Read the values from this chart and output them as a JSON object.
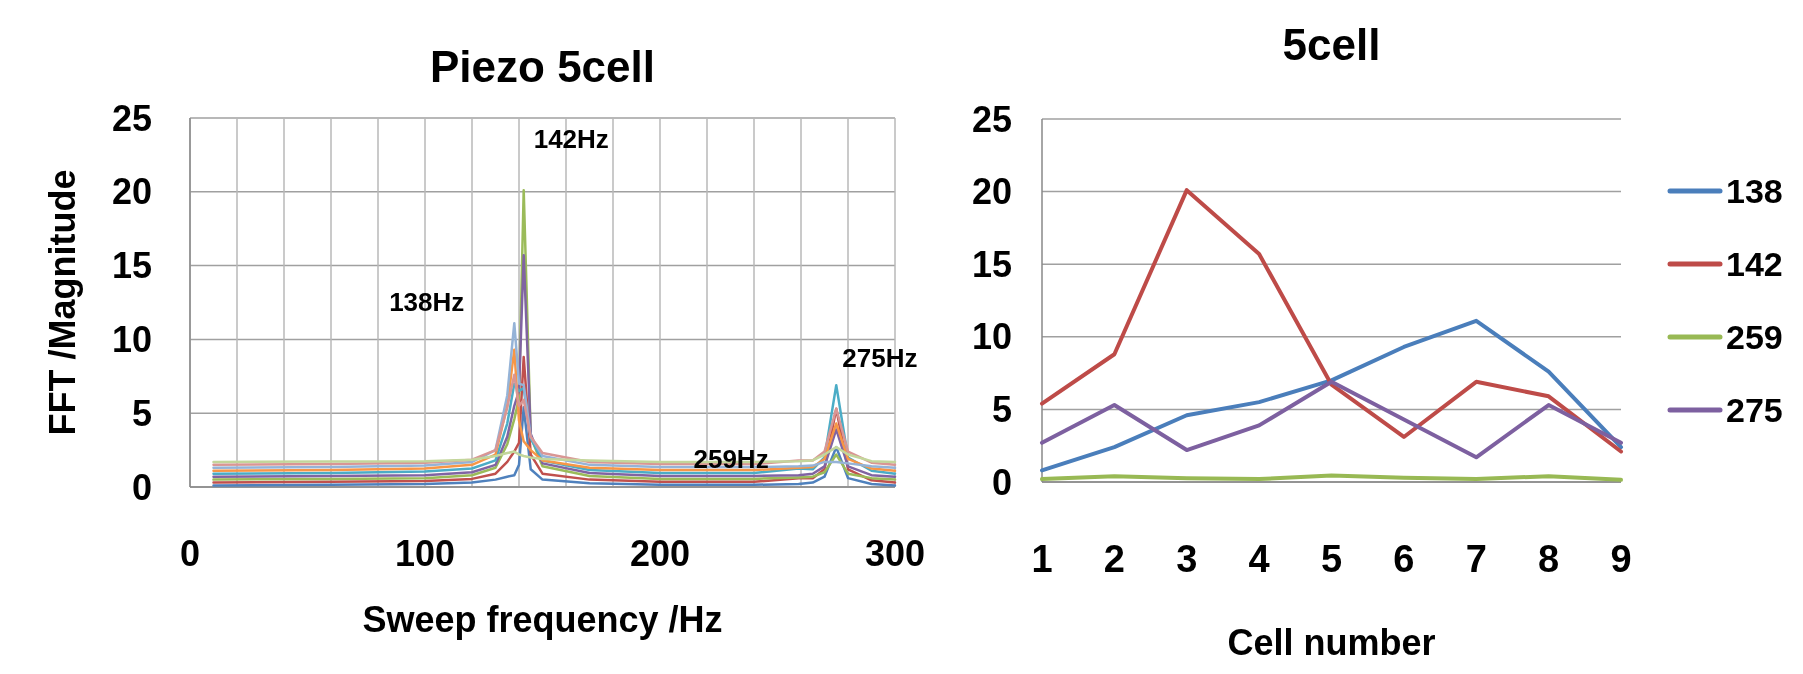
{
  "chart_data": [
    {
      "type": "line",
      "title": "Piezo 5cell",
      "xlabel": "Sweep frequency /Hz",
      "ylabel": "FFT /Magnitude",
      "xlim": [
        0,
        300
      ],
      "ylim": [
        0,
        25
      ],
      "xticks": [
        0,
        {
          "value": 20,
          "label": null
        },
        {
          "value": 40,
          "label": null
        },
        {
          "value": 60,
          "label": null
        },
        {
          "value": 80,
          "label": null
        },
        100,
        {
          "value": 120,
          "label": null
        },
        {
          "value": 140,
          "label": null
        },
        {
          "value": 160,
          "label": null
        },
        {
          "value": 180,
          "label": null
        },
        200,
        {
          "value": 220,
          "label": null
        },
        {
          "value": 240,
          "label": null
        },
        {
          "value": 260,
          "label": null
        },
        {
          "value": 280,
          "label": null
        },
        300
      ],
      "yticks": [
        0,
        5,
        10,
        15,
        20,
        25
      ],
      "grid": true,
      "x": [
        10,
        60,
        100,
        120,
        130,
        135,
        138,
        140,
        142,
        145,
        150,
        170,
        200,
        240,
        259,
        265,
        270,
        275,
        280,
        290,
        300
      ],
      "series": [
        {
          "color": "#4f81bd",
          "values": [
            0.1,
            0.15,
            0.2,
            0.3,
            0.5,
            0.7,
            0.8,
            1.5,
            5.4,
            1.2,
            0.5,
            0.25,
            0.15,
            0.15,
            0.2,
            0.3,
            0.7,
            2.7,
            0.6,
            0.2,
            0.1
          ]
        },
        {
          "color": "#c0504d",
          "values": [
            0.3,
            0.35,
            0.4,
            0.55,
            0.9,
            1.7,
            2.4,
            3,
            8.8,
            2.2,
            0.9,
            0.5,
            0.35,
            0.35,
            0.6,
            0.6,
            1.2,
            5.3,
            1.2,
            0.45,
            0.3
          ]
        },
        {
          "color": "#9bbb59",
          "values": [
            0.5,
            0.55,
            0.6,
            0.8,
            1.3,
            2.9,
            4.6,
            6,
            20.1,
            3.4,
            1.4,
            0.75,
            0.55,
            0.55,
            0.65,
            0.7,
            1,
            2.2,
            0.9,
            0.6,
            0.5
          ]
        },
        {
          "color": "#8064a2",
          "values": [
            0.7,
            0.75,
            0.8,
            1,
            1.5,
            3.4,
            5.5,
            6.5,
            15.7,
            3.6,
            1.6,
            0.95,
            0.75,
            0.75,
            0.8,
            0.9,
            1.4,
            3.9,
            1.4,
            0.8,
            0.7
          ]
        },
        {
          "color": "#4bacc6",
          "values": [
            0.9,
            0.95,
            1.05,
            1.25,
            1.8,
            4.3,
            7,
            6.5,
            6.7,
            3.3,
            1.8,
            1.15,
            0.95,
            0.95,
            1.25,
            1.2,
            2,
            6.9,
            2,
            1.1,
            0.9
          ]
        },
        {
          "color": "#f79646",
          "values": [
            1.1,
            1.15,
            1.25,
            1.5,
            2.2,
            5.5,
            9.3,
            4.5,
            3.1,
            2.5,
            1.8,
            1.3,
            1.15,
            1.15,
            1.3,
            1.35,
            1.9,
            4.3,
            1.9,
            1.25,
            1.1
          ]
        },
        {
          "color": "#95b3d7",
          "values": [
            1.3,
            1.35,
            1.45,
            1.7,
            2.5,
            6.2,
            11.1,
            7,
            6.9,
            3.4,
            2.1,
            1.5,
            1.35,
            1.35,
            1.4,
            1.45,
            1.7,
            1.7,
            1.6,
            1.4,
            1.3
          ]
        },
        {
          "color": "#d99694",
          "values": [
            1.5,
            1.55,
            1.65,
            1.85,
            2.5,
            5.4,
            7.6,
            5.5,
            5.9,
            3.4,
            2.3,
            1.7,
            1.55,
            1.55,
            1.8,
            1.8,
            2.4,
            5.3,
            2.4,
            1.65,
            1.5
          ]
        },
        {
          "color": "#c3d69b",
          "values": [
            1.7,
            1.72,
            1.75,
            1.85,
            2.1,
            2.3,
            2.4,
            2.2,
            2.1,
            2,
            1.9,
            1.8,
            1.7,
            1.7,
            1.75,
            1.8,
            2.2,
            2.7,
            2.2,
            1.75,
            1.7
          ]
        }
      ],
      "annotations": [
        {
          "text": "138Hz",
          "x": 138,
          "y": 11.1
        },
        {
          "text": "142Hz",
          "x": 142,
          "y": 20.1
        },
        {
          "text": "259Hz",
          "x": 259,
          "y": 0.45
        },
        {
          "text": "275Hz",
          "x": 275,
          "y": 6.9
        }
      ]
    },
    {
      "type": "line",
      "title": "5cell",
      "xlabel": "Cell number",
      "categories": [
        "1",
        "2",
        "3",
        "4",
        "5",
        "6",
        "7",
        "8",
        "9"
      ],
      "ylim": [
        0,
        25
      ],
      "yticks": [
        0,
        5,
        10,
        15,
        20,
        25
      ],
      "grid": "y",
      "legend": "right",
      "series": [
        {
          "name": "138",
          "color": "#4a7ebb",
          "values": [
            0.8,
            2.4,
            4.6,
            5.5,
            7.0,
            9.3,
            11.1,
            7.6,
            2.4
          ]
        },
        {
          "name": "142",
          "color": "#be4b48",
          "values": [
            5.4,
            8.8,
            20.1,
            15.7,
            6.7,
            3.1,
            6.9,
            5.9,
            2.1
          ]
        },
        {
          "name": "259",
          "color": "#98b954",
          "values": [
            0.2,
            0.4,
            0.25,
            0.2,
            0.45,
            0.3,
            0.2,
            0.4,
            0.15
          ]
        },
        {
          "name": "275",
          "color": "#7d60a0",
          "values": [
            2.7,
            5.3,
            2.2,
            3.9,
            6.9,
            4.3,
            1.7,
            5.3,
            2.7
          ]
        }
      ]
    }
  ]
}
